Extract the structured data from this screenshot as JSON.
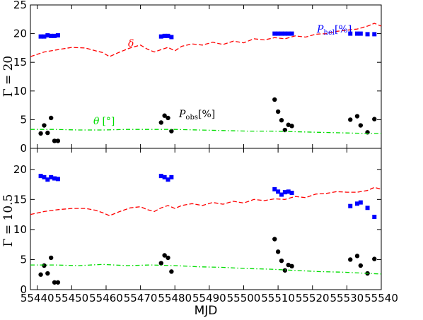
{
  "figure": {
    "xlabel": "MJD",
    "colors": {
      "black": "#000000",
      "delta": "#ff0000",
      "theta": "#00dd00",
      "phel": "#0000ff"
    }
  },
  "chart_data": [
    {
      "type": "scatter",
      "panel": "top",
      "ylabel": "Γ = 20",
      "xlim": [
        55438,
        55540
      ],
      "ylim": [
        0,
        25
      ],
      "xticks": [
        "55440",
        "55450",
        "55460",
        "55470",
        "55480",
        "55490",
        "55500",
        "55510",
        "55520",
        "55530",
        "55540"
      ],
      "yticks": [
        "0",
        "5",
        "10",
        "15",
        "20",
        "25"
      ],
      "annotations": {
        "delta": {
          "text": "δ"
        },
        "phel": {
          "text": "P",
          "sub": "hel",
          "suffix": "[%]"
        },
        "pobs": {
          "text": "P",
          "sub": "obs",
          "suffix": "[%]"
        },
        "theta": {
          "text": "θ",
          "suffix": "[°]"
        }
      },
      "series": [
        {
          "key": "pobs",
          "style": "circle",
          "x": [
            55441,
            55442,
            55443,
            55444,
            55445,
            55446,
            55476,
            55477,
            55478,
            55479,
            55509,
            55510,
            55511,
            55512,
            55513,
            55514,
            55531,
            55533,
            55534,
            55536,
            55538
          ],
          "y": [
            2.6,
            4.0,
            2.7,
            5.3,
            1.3,
            1.3,
            4.5,
            5.7,
            5.3,
            3.0,
            8.5,
            6.4,
            4.9,
            3.2,
            4.1,
            3.9,
            5.0,
            5.6,
            4.0,
            2.8,
            5.1
          ]
        },
        {
          "key": "phel",
          "style": "square",
          "x": [
            55441,
            55442,
            55443,
            55444,
            55445,
            55446,
            55476,
            55477,
            55478,
            55479,
            55509,
            55510,
            55511,
            55512,
            55513,
            55514,
            55531,
            55533,
            55534,
            55536,
            55538
          ],
          "y": [
            19.5,
            19.5,
            19.7,
            19.6,
            19.6,
            19.7,
            19.5,
            19.6,
            19.6,
            19.4,
            20.0,
            20.0,
            20.0,
            20.0,
            20.0,
            20.0,
            20.0,
            20.0,
            20.0,
            19.9,
            19.9
          ]
        },
        {
          "key": "delta",
          "style": "dashed",
          "x": [
            55438,
            55442,
            55446,
            55450,
            55454,
            55457,
            55459,
            55461,
            55464,
            55467,
            55470,
            55472,
            55474,
            55476,
            55478,
            55480,
            55482,
            55485,
            55488,
            55491,
            55494,
            55497,
            55500,
            55503,
            55506,
            55509,
            55512,
            55515,
            55518,
            55521,
            55524,
            55527,
            55530,
            55533,
            55536,
            55538,
            55540
          ],
          "y": [
            16.0,
            16.8,
            17.2,
            17.6,
            17.5,
            17.0,
            16.7,
            16.0,
            16.8,
            17.5,
            18.0,
            17.3,
            16.8,
            17.2,
            17.6,
            17.0,
            17.8,
            18.2,
            18.0,
            18.5,
            18.1,
            18.7,
            18.4,
            19.1,
            18.9,
            19.3,
            19.1,
            19.6,
            19.4,
            19.9,
            20.0,
            20.4,
            20.6,
            20.8,
            21.3,
            21.8,
            21.3
          ]
        },
        {
          "key": "theta",
          "style": "dashdot",
          "x": [
            55438,
            55445,
            55452,
            55459,
            55466,
            55473,
            55480,
            55487,
            55494,
            55501,
            55508,
            55515,
            55522,
            55529,
            55536,
            55540
          ],
          "y": [
            3.3,
            3.3,
            3.2,
            3.2,
            3.3,
            3.3,
            3.3,
            3.2,
            3.1,
            3.0,
            3.0,
            2.9,
            2.8,
            2.7,
            2.6,
            2.6
          ]
        }
      ]
    },
    {
      "type": "scatter",
      "panel": "bottom",
      "ylabel": "Γ = 10.5",
      "xlim": [
        55438,
        55540
      ],
      "ylim": [
        0,
        23.5
      ],
      "xticks": [
        "55440",
        "55450",
        "55460",
        "55470",
        "55480",
        "55490",
        "55500",
        "55510",
        "55520",
        "55530",
        "55540"
      ],
      "yticks": [
        "0",
        "5",
        "10",
        "15",
        "20"
      ],
      "series": [
        {
          "key": "pobs",
          "style": "circle",
          "x": [
            55441,
            55442,
            55443,
            55444,
            55445,
            55446,
            55476,
            55477,
            55478,
            55479,
            55509,
            55510,
            55511,
            55512,
            55513,
            55514,
            55531,
            55533,
            55534,
            55536,
            55538
          ],
          "y": [
            2.5,
            4.0,
            2.7,
            5.3,
            1.2,
            1.2,
            4.4,
            5.7,
            5.3,
            3.0,
            8.4,
            6.3,
            4.8,
            3.2,
            4.1,
            3.9,
            5.0,
            5.6,
            4.0,
            2.7,
            5.1
          ]
        },
        {
          "key": "phel",
          "style": "square",
          "x": [
            55441,
            55442,
            55443,
            55444,
            55445,
            55446,
            55476,
            55477,
            55478,
            55479,
            55509,
            55510,
            55511,
            55512,
            55513,
            55514,
            55531,
            55533,
            55534,
            55536,
            55538
          ],
          "y": [
            18.9,
            18.7,
            18.3,
            18.7,
            18.5,
            18.4,
            18.9,
            18.7,
            18.3,
            18.7,
            16.7,
            16.3,
            15.8,
            16.2,
            16.3,
            16.1,
            13.9,
            14.3,
            14.5,
            13.6,
            12.1
          ]
        },
        {
          "key": "delta",
          "style": "dashed",
          "x": [
            55438,
            55442,
            55446,
            55450,
            55454,
            55457,
            55459,
            55461,
            55464,
            55467,
            55470,
            55472,
            55474,
            55476,
            55478,
            55480,
            55482,
            55485,
            55488,
            55491,
            55494,
            55497,
            55500,
            55503,
            55506,
            55509,
            55512,
            55515,
            55518,
            55521,
            55524,
            55527,
            55530,
            55533,
            55536,
            55538,
            55540
          ],
          "y": [
            12.5,
            13.0,
            13.3,
            13.5,
            13.5,
            13.2,
            12.8,
            12.3,
            13.0,
            13.6,
            13.8,
            13.3,
            13.0,
            13.6,
            14.0,
            13.5,
            14.0,
            14.3,
            14.0,
            14.5,
            14.2,
            14.7,
            14.4,
            15.0,
            14.8,
            15.1,
            15.0,
            15.5,
            15.3,
            15.9,
            16.0,
            16.3,
            16.2,
            16.2,
            16.5,
            17.0,
            16.7
          ]
        },
        {
          "key": "theta",
          "style": "dashdot",
          "x": [
            55438,
            55445,
            55452,
            55459,
            55466,
            55473,
            55480,
            55487,
            55494,
            55501,
            55508,
            55515,
            55522,
            55529,
            55536,
            55540
          ],
          "y": [
            4.1,
            4.1,
            4.0,
            4.2,
            4.0,
            4.1,
            4.0,
            3.8,
            3.7,
            3.5,
            3.4,
            3.2,
            3.0,
            2.9,
            2.7,
            2.6
          ]
        }
      ]
    }
  ]
}
